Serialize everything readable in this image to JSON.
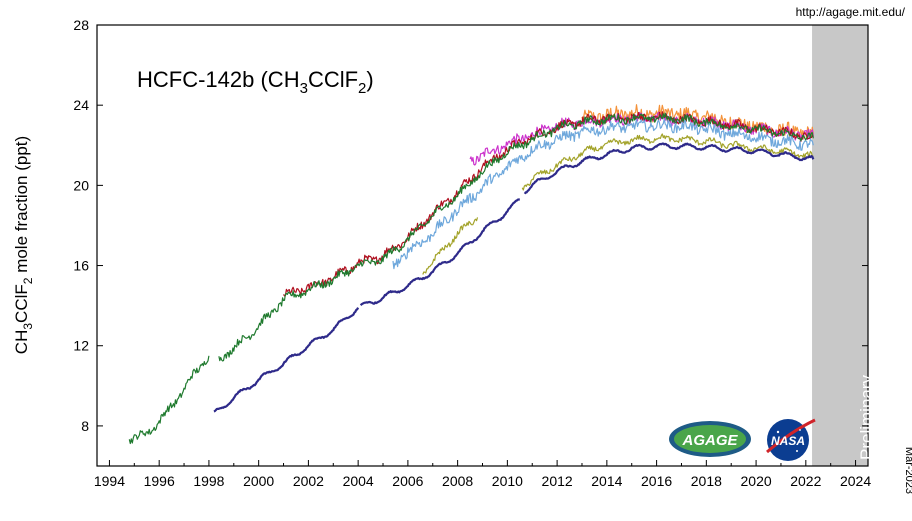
{
  "source_url": "http://agage.mit.edu/",
  "date_stamp": "Mar-2023",
  "logos": {
    "agage": "AGAGE",
    "nasa": "NASA"
  },
  "chart_data": {
    "type": "line",
    "title_main": "HCFC-142b (CH",
    "title_sub1": "3",
    "title_mid": "CClF",
    "title_sub2": "2",
    "title_end": ")",
    "ylabel_main": "CH",
    "ylabel_sub1": "3",
    "ylabel_mid": "CClF",
    "ylabel_sub2": "2",
    "ylabel_end": " mole fraction (ppt)",
    "xlim": [
      1993.5,
      2024.5
    ],
    "ylim": [
      6,
      28
    ],
    "xticks": [
      1994,
      1996,
      1998,
      2000,
      2002,
      2004,
      2006,
      2008,
      2010,
      2012,
      2014,
      2016,
      2018,
      2020,
      2022,
      2024
    ],
    "yticks": [
      8,
      12,
      16,
      20,
      24,
      28
    ],
    "preliminary": {
      "label": "Preliminary",
      "x_start": 2022.25,
      "x_end": 2024.5,
      "color": "#c8c8c8"
    },
    "series": [
      {
        "color": "#f4923a",
        "noise": 0.35,
        "segments": [
          [
            [
              2013.0,
              23.3
            ],
            [
              2014.0,
              23.5
            ],
            [
              2015.0,
              23.6
            ],
            [
              2016.0,
              23.6
            ],
            [
              2017.0,
              23.55
            ],
            [
              2018.0,
              23.4
            ],
            [
              2019.0,
              23.15
            ],
            [
              2020.0,
              22.9
            ],
            [
              2021.0,
              22.75
            ],
            [
              2022.3,
              22.55
            ]
          ]
        ]
      },
      {
        "color": "#cc33cc",
        "noise": 0.25,
        "segments": [
          [
            [
              2008.5,
              21.2
            ],
            [
              2009.5,
              21.8
            ],
            [
              2010.5,
              22.3
            ],
            [
              2011.5,
              22.75
            ],
            [
              2012.5,
              23.1
            ],
            [
              2014.0,
              23.3
            ],
            [
              2016.0,
              23.35
            ],
            [
              2018.0,
              23.2
            ],
            [
              2020.0,
              22.8
            ],
            [
              2022.3,
              22.45
            ]
          ]
        ]
      },
      {
        "color": "#b01020",
        "noise": 0.2,
        "segments": [
          [
            [
              2001.0,
              14.5
            ],
            [
              2002.0,
              14.9
            ],
            [
              2003.0,
              15.4
            ],
            [
              2004.0,
              16.1
            ],
            [
              2005.0,
              16.5
            ],
            [
              2006.0,
              17.4
            ],
            [
              2007.0,
              18.6
            ],
            [
              2008.0,
              19.7
            ],
            [
              2009.0,
              20.9
            ],
            [
              2010.0,
              21.8
            ],
            [
              2011.0,
              22.4
            ],
            [
              2012.0,
              22.9
            ],
            [
              2013.0,
              23.2
            ],
            [
              2014.0,
              23.35
            ],
            [
              2016.0,
              23.4
            ],
            [
              2018.0,
              23.2
            ],
            [
              2020.0,
              22.85
            ],
            [
              2022.3,
              22.4
            ]
          ]
        ]
      },
      {
        "color": "#1f7a2e",
        "noise": 0.18,
        "segments": [
          [
            [
              1994.8,
              7.35
            ],
            [
              1995.2,
              7.45
            ],
            [
              1995.6,
              7.75
            ],
            [
              1996.0,
              8.2
            ],
            [
              1996.5,
              9.0
            ],
            [
              1997.0,
              9.8
            ],
            [
              1997.4,
              10.6
            ],
            [
              1998.0,
              11.5
            ]
          ],
          [
            [
              1998.4,
              11.3
            ],
            [
              1999.0,
              11.9
            ],
            [
              1999.5,
              12.4
            ],
            [
              2000.0,
              13.0
            ],
            [
              2000.5,
              13.6
            ],
            [
              2001.0,
              14.3
            ],
            [
              2001.5,
              14.55
            ],
            [
              2002.0,
              14.8
            ],
            [
              2003.0,
              15.3
            ],
            [
              2004.0,
              16.0
            ],
            [
              2005.0,
              16.3
            ],
            [
              2006.0,
              17.3
            ],
            [
              2007.0,
              18.5
            ],
            [
              2008.0,
              19.5
            ],
            [
              2009.0,
              20.7
            ],
            [
              2010.0,
              21.7
            ],
            [
              2011.0,
              22.3
            ],
            [
              2012.0,
              22.85
            ],
            [
              2013.0,
              23.15
            ],
            [
              2014.0,
              23.3
            ],
            [
              2015.0,
              23.35
            ],
            [
              2016.0,
              23.35
            ],
            [
              2017.0,
              23.3
            ],
            [
              2018.0,
              23.15
            ],
            [
              2019.0,
              22.95
            ],
            [
              2020.0,
              22.8
            ],
            [
              2021.0,
              22.6
            ],
            [
              2022.3,
              22.35
            ]
          ]
        ]
      },
      {
        "color": "#6fa8dc",
        "noise": 0.25,
        "segments": [
          [
            [
              2005.4,
              16.0
            ],
            [
              2006.0,
              16.7
            ],
            [
              2007.0,
              17.6
            ],
            [
              2008.0,
              18.8
            ],
            [
              2009.0,
              19.9
            ],
            [
              2010.0,
              20.9
            ],
            [
              2011.0,
              21.8
            ],
            [
              2012.0,
              22.3
            ],
            [
              2013.0,
              22.65
            ],
            [
              2014.0,
              22.85
            ],
            [
              2015.0,
              22.95
            ],
            [
              2016.0,
              23.0
            ],
            [
              2017.0,
              22.95
            ],
            [
              2018.0,
              22.8
            ],
            [
              2019.0,
              22.55
            ],
            [
              2020.0,
              22.4
            ],
            [
              2021.0,
              22.2
            ],
            [
              2022.3,
              22.0
            ]
          ]
        ]
      },
      {
        "color": "#a3a32a",
        "noise": 0.12,
        "segments": [
          [
            [
              2006.6,
              15.6
            ],
            [
              2007.0,
              16.2
            ],
            [
              2008.0,
              17.6
            ],
            [
              2008.8,
              18.4
            ]
          ],
          [
            [
              2010.6,
              19.9
            ],
            [
              2011.0,
              20.3
            ],
            [
              2012.0,
              21.0
            ],
            [
              2013.0,
              21.6
            ],
            [
              2014.0,
              22.05
            ],
            [
              2015.0,
              22.25
            ],
            [
              2016.0,
              22.35
            ],
            [
              2017.0,
              22.3
            ],
            [
              2018.0,
              22.2
            ],
            [
              2019.0,
              22.0
            ],
            [
              2020.0,
              21.85
            ],
            [
              2021.0,
              21.7
            ],
            [
              2022.3,
              21.45
            ]
          ]
        ]
      },
      {
        "color": "#2e2a8a",
        "noise": 0.03,
        "segments": [
          [
            [
              1998.2,
              8.6
            ],
            [
              1999.0,
              9.4
            ],
            [
              2000.0,
              10.3
            ],
            [
              2001.0,
              11.1
            ],
            [
              2002.0,
              12.0
            ],
            [
              2003.0,
              12.8
            ],
            [
              2004.0,
              13.9
            ]
          ],
          [
            [
              2004.1,
              13.95
            ],
            [
              2005.0,
              14.4
            ],
            [
              2006.0,
              15.0
            ],
            [
              2007.0,
              15.7
            ],
            [
              2008.0,
              16.6
            ],
            [
              2009.0,
              17.7
            ],
            [
              2010.0,
              18.7
            ],
            [
              2010.5,
              19.3
            ]
          ],
          [
            [
              2010.7,
              19.7
            ],
            [
              2011.0,
              20.0
            ],
            [
              2012.0,
              20.7
            ],
            [
              2013.0,
              21.2
            ],
            [
              2014.0,
              21.55
            ],
            [
              2015.0,
              21.85
            ],
            [
              2016.0,
              21.95
            ],
            [
              2017.0,
              21.95
            ],
            [
              2018.0,
              21.9
            ],
            [
              2019.0,
              21.8
            ],
            [
              2020.0,
              21.7
            ],
            [
              2021.0,
              21.55
            ],
            [
              2022.3,
              21.3
            ]
          ]
        ]
      }
    ]
  }
}
